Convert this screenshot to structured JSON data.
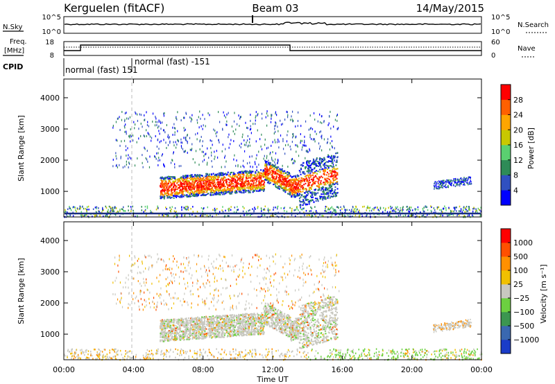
{
  "header": {
    "station": "Kerguelen (fitACF)",
    "beam": "Beam 03",
    "date": "14/May/2015"
  },
  "top_panels": {
    "nsky_label": "N.Sky",
    "nsky_ticks": [
      "10^5",
      "10^0"
    ],
    "nsearch_label": "N.Search",
    "nsearch_ticks": [
      "10^5",
      "10^0"
    ],
    "freq_label_top": "Freq.",
    "freq_label_unit": "[MHz]",
    "freq_ticks": [
      "18",
      "8"
    ],
    "nave_label": "Nave",
    "nave_ticks": [
      "60",
      "0"
    ],
    "cpid_label": "CPID",
    "cpid_mode1": "normal (fast) 151",
    "cpid_mode2": "normal (fast) -151"
  },
  "chart_data": [
    {
      "type": "heatmap",
      "title": "",
      "ylabel": "Slant Range [km]",
      "yticks": [
        "1000",
        "2000",
        "3000",
        "4000"
      ],
      "ylim": [
        180,
        4600
      ],
      "xlim": [
        0,
        24
      ],
      "colorbar": {
        "label": "Power [dB]",
        "ticks": [
          "4",
          "8",
          "12",
          "16",
          "20",
          "24",
          "28"
        ],
        "colors": [
          "#0000ff",
          "#3050c0",
          "#2e8b57",
          "#5ad070",
          "#c8c800",
          "#ffa500",
          "#ff6000",
          "#ff0000"
        ]
      }
    },
    {
      "type": "heatmap",
      "title": "",
      "ylabel": "Slant Range [km]",
      "yticks": [
        "1000",
        "2000",
        "3000",
        "4000"
      ],
      "ylim": [
        180,
        4600
      ],
      "xlim": [
        0,
        24
      ],
      "colorbar": {
        "label": "Velocity [m s⁻¹]",
        "ticks": [
          "1000",
          "500",
          "100",
          "25",
          "−25",
          "−100",
          "−500",
          "−1000"
        ],
        "colors": [
          "#1a3cc8",
          "#3a68b0",
          "#3c9650",
          "#6cd040",
          "#c8c8c0",
          "#f0c000",
          "#ff9000",
          "#ff5000",
          "#ff0000"
        ]
      }
    }
  ],
  "xaxis": {
    "label": "Time UT",
    "ticks": [
      "00:00",
      "04:00",
      "08:00",
      "12:00",
      "16:00",
      "20:00",
      "00:00"
    ]
  }
}
